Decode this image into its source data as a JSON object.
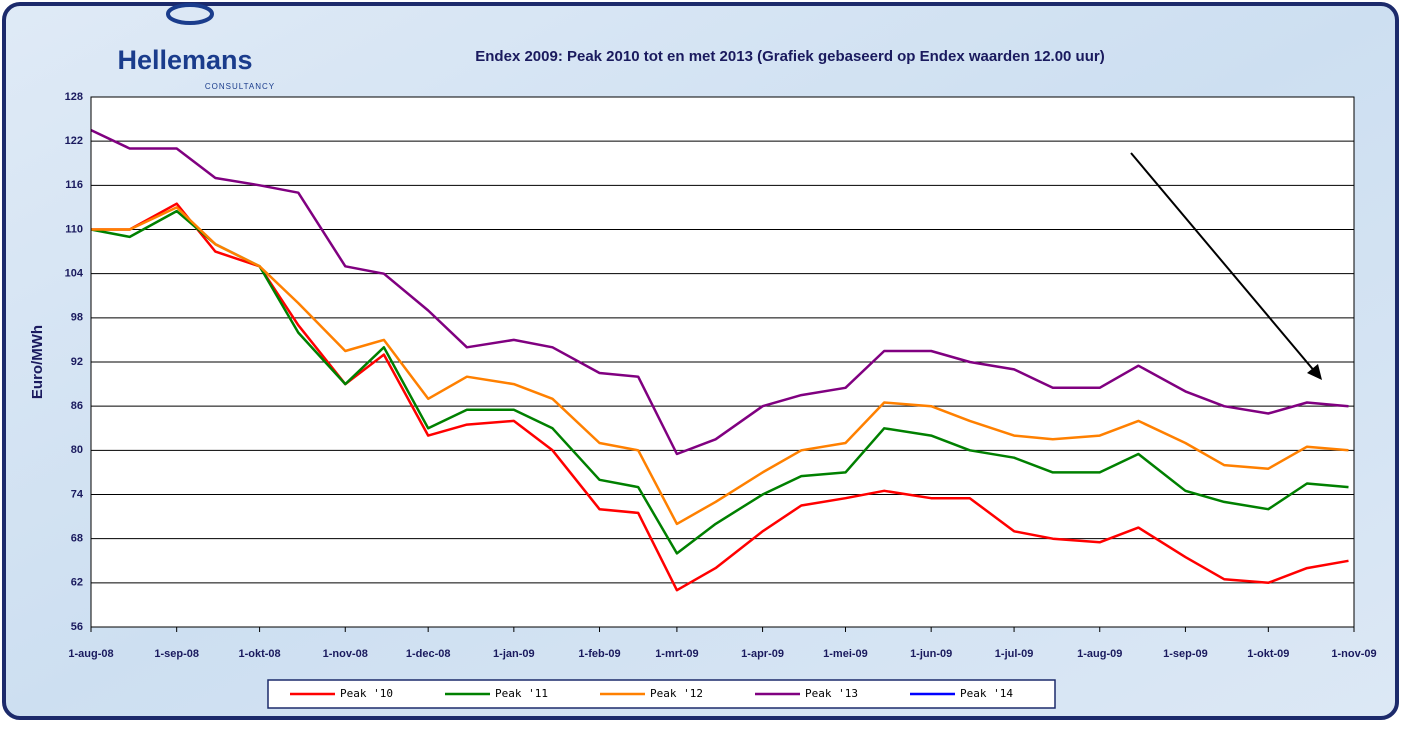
{
  "logo": {
    "name": "Hellemans",
    "tagline": "CONSULTANCY"
  },
  "chart_data": {
    "type": "line",
    "title": "Endex 2009: Peak 2010  tot en met 2013 (Grafiek  gebaseerd op Endex waarden 12.00 uur)",
    "y_label": "Euro/MWh",
    "x": [
      "2008-08-01",
      "2008-08-15",
      "2008-09-01",
      "2008-09-15",
      "2008-10-01",
      "2008-10-15",
      "2008-11-01",
      "2008-11-15",
      "2008-12-01",
      "2008-12-15",
      "2009-01-01",
      "2009-01-15",
      "2009-02-01",
      "2009-02-15",
      "2009-03-01",
      "2009-03-15",
      "2009-04-01",
      "2009-04-15",
      "2009-05-01",
      "2009-05-15",
      "2009-06-01",
      "2009-06-15",
      "2009-07-01",
      "2009-07-15",
      "2009-08-01",
      "2009-08-15",
      "2009-09-01",
      "2009-09-15",
      "2009-10-01",
      "2009-10-15",
      "2009-10-30"
    ],
    "series": [
      {
        "name": "Peak '10",
        "color": "#ff0000",
        "values": [
          110,
          110,
          113.5,
          107,
          105,
          97,
          89,
          93,
          82,
          83.5,
          84,
          80,
          72,
          71.5,
          61,
          64,
          69,
          72.5,
          73.5,
          74.5,
          73.5,
          73.5,
          69,
          68,
          67.5,
          69.5,
          65.5,
          62.5,
          62,
          64,
          65
        ]
      },
      {
        "name": "Peak '11",
        "color": "#008000",
        "values": [
          110,
          109,
          112.5,
          108,
          105,
          96,
          89,
          94,
          83,
          85.5,
          85.5,
          83,
          76,
          75,
          66,
          70,
          74,
          76.5,
          77,
          83,
          82,
          80,
          79,
          77,
          77,
          79.5,
          74.5,
          73,
          72,
          75.5,
          75
        ]
      },
      {
        "name": "Peak '12",
        "color": "#ff8000",
        "values": [
          110,
          110,
          113,
          108,
          105,
          100,
          93.5,
          95,
          87,
          90,
          89,
          87,
          81,
          80,
          70,
          73,
          77,
          80,
          81,
          86.5,
          86,
          84,
          82,
          81.5,
          82,
          84,
          81,
          78,
          77.5,
          80.5,
          80
        ]
      },
      {
        "name": "Peak '13",
        "color": "#800080",
        "values": [
          123.5,
          121,
          121,
          117,
          116,
          115,
          105,
          104,
          99,
          94,
          95,
          94,
          90.5,
          90,
          79.5,
          81.5,
          86,
          87.5,
          88.5,
          93.5,
          93.5,
          92,
          91,
          88.5,
          88.5,
          91.5,
          88,
          86,
          85,
          86.5,
          86
        ]
      },
      {
        "name": "Peak '14",
        "color": "#0000ff",
        "values": [
          null,
          null,
          null,
          null,
          null,
          null,
          null,
          null,
          null,
          null,
          null,
          null,
          null,
          null,
          null,
          null,
          null,
          null,
          null,
          null,
          null,
          null,
          null,
          null,
          null,
          null,
          null,
          null,
          null,
          null,
          null
        ]
      }
    ],
    "xlim": [
      "2008-08-01",
      "2009-11-01"
    ],
    "xticks": [
      {
        "value": "2008-08-01",
        "label": "1-aug-08"
      },
      {
        "value": "2008-09-01",
        "label": "1-sep-08"
      },
      {
        "value": "2008-10-01",
        "label": "1-okt-08"
      },
      {
        "value": "2008-11-01",
        "label": "1-nov-08"
      },
      {
        "value": "2008-12-01",
        "label": "1-dec-08"
      },
      {
        "value": "2009-01-01",
        "label": "1-jan-09"
      },
      {
        "value": "2009-02-01",
        "label": "1-feb-09"
      },
      {
        "value": "2009-03-01",
        "label": "1-mrt-09"
      },
      {
        "value": "2009-04-01",
        "label": "1-apr-09"
      },
      {
        "value": "2009-05-01",
        "label": "1-mei-09"
      },
      {
        "value": "2009-06-01",
        "label": "1-jun-09"
      },
      {
        "value": "2009-07-01",
        "label": "1-jul-09"
      },
      {
        "value": "2009-08-01",
        "label": "1-aug-09"
      },
      {
        "value": "2009-09-01",
        "label": "1-sep-09"
      },
      {
        "value": "2009-10-01",
        "label": "1-okt-09"
      },
      {
        "value": "2009-11-01",
        "label": "1-nov-09"
      }
    ],
    "ylim": [
      56,
      128
    ],
    "yticks": [
      56,
      62,
      68,
      74,
      80,
      86,
      92,
      98,
      104,
      110,
      116,
      122,
      128
    ],
    "grid": true
  }
}
